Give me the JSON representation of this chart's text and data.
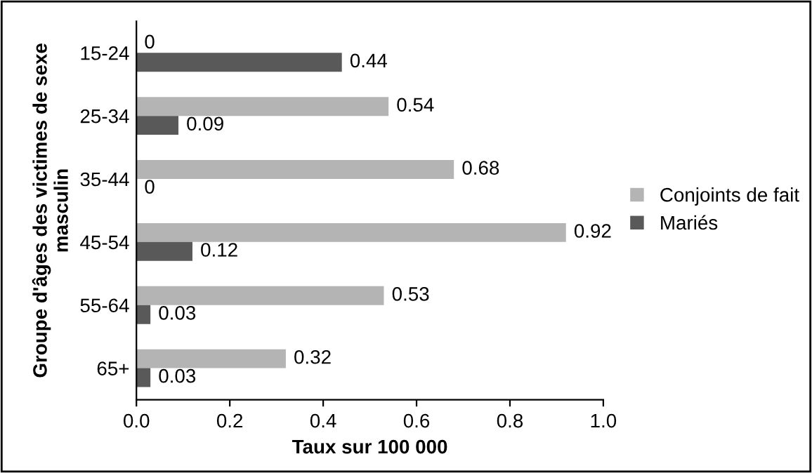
{
  "chart_data": {
    "type": "bar",
    "orientation": "horizontal",
    "xlabel": "Taux sur 100 000",
    "ylabel": "Groupe d'âges des victimes de sexe masculin",
    "categories": [
      "15-24",
      "25-34",
      "35-44",
      "45-54",
      "55-64",
      "65+"
    ],
    "series": [
      {
        "name": "Conjoints de fait",
        "color": "#b4b4b4",
        "values": [
          0,
          0.54,
          0.68,
          0.92,
          0.53,
          0.32
        ]
      },
      {
        "name": "Mariés",
        "color": "#595959",
        "values": [
          0.44,
          0.09,
          0,
          0.12,
          0.03,
          0.03
        ]
      }
    ],
    "xlim": [
      0,
      1
    ],
    "xticks": [
      {
        "value": 0,
        "label": "0.0"
      },
      {
        "value": 0.2,
        "label": "0.2"
      },
      {
        "value": 0.4,
        "label": "0.4"
      },
      {
        "value": 0.6,
        "label": "0.6"
      },
      {
        "value": 0.8,
        "label": "0.8"
      },
      {
        "value": 1,
        "label": "1.0"
      }
    ],
    "data_labels": true,
    "legend": "right",
    "grid": false
  }
}
